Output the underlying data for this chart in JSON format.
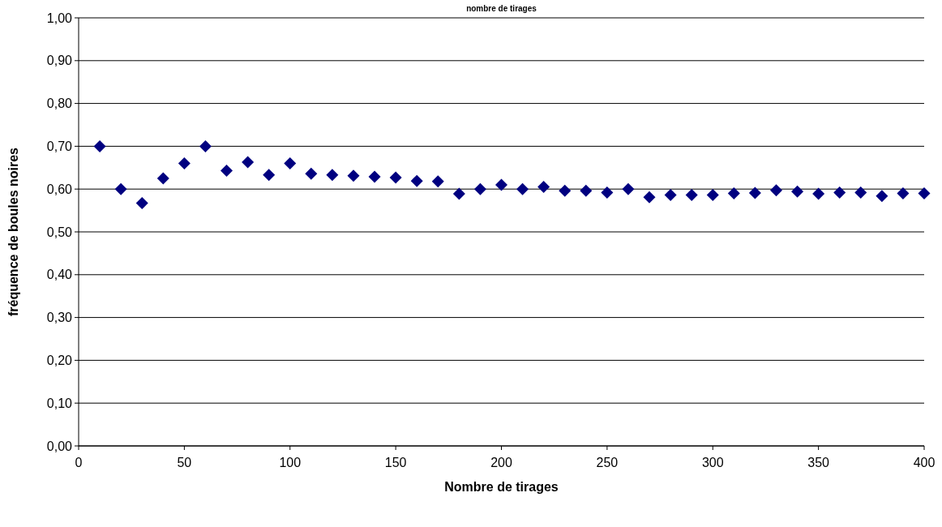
{
  "chart_data": {
    "type": "scatter",
    "title": "nombre de tirages",
    "xlabel": "Nombre de tirages",
    "ylabel": "fréquence de boules noires",
    "x": [
      10,
      20,
      30,
      40,
      50,
      60,
      70,
      80,
      90,
      100,
      110,
      120,
      130,
      140,
      150,
      160,
      170,
      180,
      190,
      200,
      210,
      220,
      230,
      240,
      250,
      260,
      270,
      280,
      290,
      300,
      310,
      320,
      330,
      340,
      350,
      360,
      370,
      380,
      390,
      400
    ],
    "series": [
      {
        "color": "#000080",
        "values": [
          0.7,
          0.6,
          0.567,
          0.625,
          0.66,
          0.7,
          0.643,
          0.663,
          0.633,
          0.66,
          0.636,
          0.633,
          0.631,
          0.629,
          0.627,
          0.619,
          0.618,
          0.589,
          0.6,
          0.61,
          0.6,
          0.605,
          0.596,
          0.596,
          0.592,
          0.6,
          0.581,
          0.586,
          0.586,
          0.586,
          0.59,
          0.591,
          0.597,
          0.594,
          0.589,
          0.592,
          0.592,
          0.584,
          0.59,
          0.59
        ]
      }
    ],
    "xlim": [
      0,
      400
    ],
    "xticks": [
      0,
      50,
      100,
      150,
      200,
      250,
      300,
      350,
      400
    ],
    "ylim": [
      0,
      1
    ],
    "yticks": [
      {
        "value": 0,
        "label": "0,00"
      },
      {
        "value": 0.1,
        "label": "0,10"
      },
      {
        "value": 0.2,
        "label": "0,20"
      },
      {
        "value": 0.3,
        "label": "0,30"
      },
      {
        "value": 0.4,
        "label": "0,40"
      },
      {
        "value": 0.5,
        "label": "0,50"
      },
      {
        "value": 0.6,
        "label": "0,60"
      },
      {
        "value": 0.7,
        "label": "0,70"
      },
      {
        "value": 0.8,
        "label": "0,80"
      },
      {
        "value": 0.9,
        "label": "0,90"
      },
      {
        "value": 1,
        "label": "1,00"
      }
    ],
    "grid": "y",
    "marker": "diamond"
  }
}
